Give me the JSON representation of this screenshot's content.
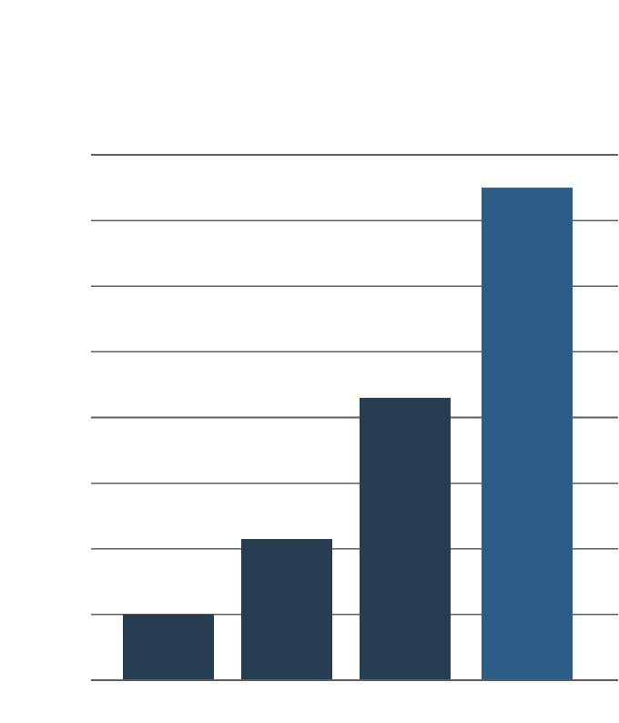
{
  "chart_data": {
    "type": "bar",
    "title": "",
    "xlabel": "",
    "ylabel": "",
    "categories": [
      "",
      "",
      "",
      ""
    ],
    "values": [
      1.0,
      2.15,
      4.3,
      7.5
    ],
    "ylim": [
      0,
      8
    ],
    "yticks": [
      0,
      1,
      2,
      3,
      4,
      5,
      6,
      7,
      8
    ],
    "grid": true,
    "legend": "none",
    "colors": {
      "default_bar": "#273d51",
      "highlight_bar": "#2d5d86",
      "gridline": "#5f5f5f",
      "background": "#ffffff"
    },
    "highlight_index": 3
  }
}
